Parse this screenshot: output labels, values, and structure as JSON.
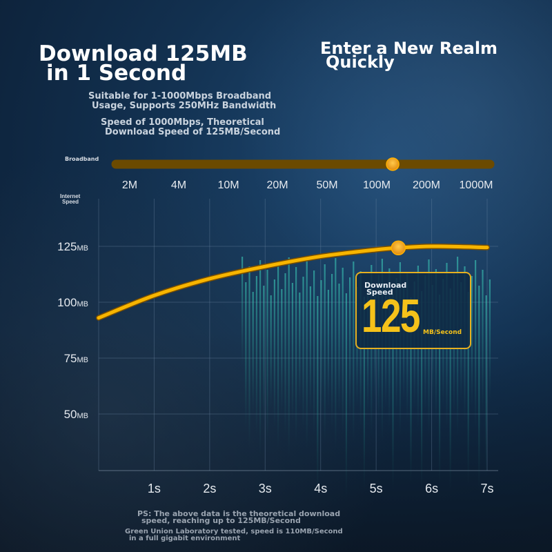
{
  "headline": {
    "line1": "Download 125MB",
    "line2": "in 1 Second"
  },
  "tagline": {
    "line1": "Enter a New Realm",
    "line2": "Quickly"
  },
  "subtitle": {
    "line1": "Suitable for 1-1000Mbps Broadband",
    "line2": "Usage, Supports 250MHz Bandwidth"
  },
  "subtitle2": {
    "line1": "Speed of 1000Mbps, Theoretical",
    "line2": "Download Speed of 125MB/Second"
  },
  "broadband": {
    "label": "Broadband",
    "ticks": [
      "2M",
      "4M",
      "10M",
      "20M",
      "50M",
      "100M",
      "200M",
      "1000M"
    ],
    "marker_value": 0.74
  },
  "badge": {
    "label_line1": "Download",
    "label_line2": "Speed",
    "value": "125",
    "unit": "MB/Second"
  },
  "footnote": {
    "ps_line1": "PS: The above data is the theoretical download",
    "ps_line2": "speed, reaching up to 125MB/Second",
    "lab_line1": "Green Union Laboratory tested, speed is 110MB/Second",
    "lab_line2": "in a full gigabit environment"
  },
  "colors": {
    "curve": "#f7b500",
    "marker": "#f0a020",
    "badge_border": "#e6b020",
    "badge_bg": "#0f2a44"
  },
  "chart_data": {
    "type": "line",
    "ylabel_lines": [
      "Internet",
      "Speed"
    ],
    "x_tick_labels": [
      "1s",
      "2s",
      "3s",
      "4s",
      "5s",
      "6s",
      "7s"
    ],
    "y_ticks": [
      {
        "value": 125,
        "num": "125",
        "unit": "MB"
      },
      {
        "value": 100,
        "num": "100",
        "unit": "MB"
      },
      {
        "value": 75,
        "num": "75",
        "unit": "MB"
      },
      {
        "value": 50,
        "num": "50",
        "unit": "MB"
      }
    ],
    "xlim": [
      0,
      7
    ],
    "ylim": [
      25,
      140
    ],
    "grid": true,
    "series": [
      {
        "x": [
          0,
          1,
          2,
          3,
          4,
          5,
          5.4,
          6,
          7
        ],
        "y": [
          93,
          103,
          110.5,
          116,
          120.5,
          123.5,
          124.3,
          125,
          124.5
        ]
      }
    ],
    "highlight_point": {
      "x": 5.4,
      "y": 124.3
    }
  }
}
